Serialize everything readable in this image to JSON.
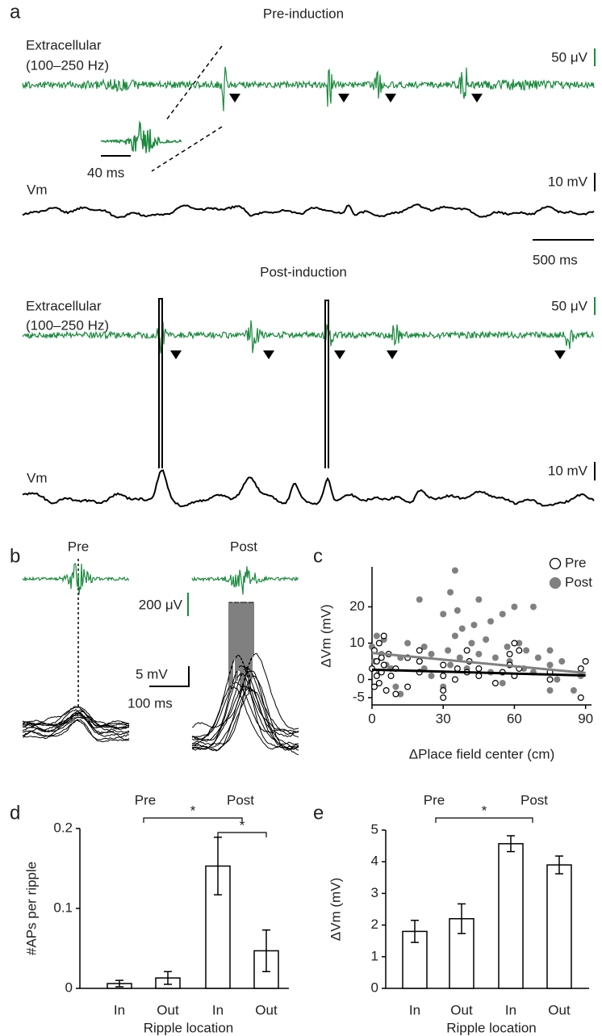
{
  "panel_a": {
    "label": "a",
    "pre_title": "Pre-induction",
    "post_title": "Post-induction",
    "extracellular_label": [
      "Extracellular",
      "(100–250 Hz)"
    ],
    "vm_label": "Vm",
    "scale_ec": "50 μV",
    "scale_vm": "10 mV",
    "scale_time": "500 ms",
    "inset_time": "40 ms"
  },
  "panel_b": {
    "label": "b",
    "pre": "Pre",
    "post": "Post",
    "scale_ec": "200 μV",
    "scale_vm": "5 mV",
    "scale_time": "100 ms"
  },
  "chart_data": [
    {
      "type": "scatter",
      "panel_label": "c",
      "xlabel": "ΔPlace field center (cm)",
      "ylabel": "ΔVm (mV)",
      "xlim": [
        0,
        92.5
      ],
      "xticks": [
        0,
        30,
        60,
        90
      ],
      "ylim": [
        -7,
        31
      ],
      "yticks": [
        -5,
        0,
        10,
        20
      ],
      "series": [
        {
          "name": "Pre",
          "color": "#000000",
          "marker": "open",
          "x": [
            0,
            1,
            1,
            2,
            2,
            3,
            3,
            4,
            4,
            5,
            5,
            6,
            7,
            8,
            10,
            10,
            15,
            15,
            20,
            20,
            20,
            30,
            30,
            30,
            30,
            35,
            36,
            40,
            40,
            41,
            45,
            45,
            52,
            55,
            58,
            58,
            60,
            60,
            62,
            62,
            75,
            75,
            88,
            88,
            90
          ],
          "y": [
            3,
            -2,
            8,
            5,
            1,
            10,
            -1,
            6,
            2,
            12,
            4,
            -3,
            7,
            1,
            -4,
            3,
            -2,
            6,
            2,
            8,
            5,
            -5,
            -3,
            1,
            4,
            0,
            3,
            2,
            8,
            5,
            1,
            3,
            -1,
            2,
            4,
            7,
            10,
            1,
            3,
            8,
            0,
            2,
            -5,
            3,
            5
          ]
        },
        {
          "name": "Post",
          "color": "#808080",
          "marker": "filled",
          "x": [
            0,
            1,
            2,
            3,
            4,
            5,
            6,
            8,
            10,
            12,
            12,
            15,
            20,
            20,
            22,
            22,
            25,
            25,
            30,
            30,
            32,
            33,
            33,
            35,
            35,
            36,
            37,
            38,
            40,
            42,
            43,
            45,
            45,
            48,
            50,
            50,
            52,
            55,
            55,
            57,
            58,
            60,
            60,
            62,
            64,
            65,
            68,
            68,
            70,
            75,
            75,
            75,
            78,
            80,
            85,
            88
          ],
          "y": [
            9,
            5,
            12,
            2,
            7,
            11,
            4,
            3,
            -2,
            -4,
            6,
            10,
            22,
            5,
            3,
            9,
            1,
            7,
            -2,
            18,
            8,
            24,
            4,
            30,
            12,
            19,
            6,
            14,
            3,
            10,
            15,
            22,
            7,
            11,
            16,
            2,
            6,
            -1,
            18,
            9,
            5,
            20,
            1,
            10,
            3,
            8,
            2,
            20,
            6,
            -3,
            4,
            8,
            0,
            5,
            -3,
            1
          ]
        }
      ],
      "fits": [
        {
          "color": "#000000",
          "x": [
            0,
            90
          ],
          "y": [
            2.7,
            1.1
          ]
        },
        {
          "color": "#808080",
          "x": [
            0,
            90
          ],
          "y": [
            7.3,
            1.8
          ]
        }
      ]
    },
    {
      "type": "bar",
      "panel_label": "d",
      "xlabel": "Ripple location",
      "ylabel": "#APs per ripple",
      "categories": [
        "In",
        "Out",
        "In",
        "Out"
      ],
      "values": [
        0.006,
        0.013,
        0.153,
        0.047
      ],
      "errors": [
        0.004,
        0.008,
        0.036,
        0.026
      ],
      "ylim": [
        0,
        0.2
      ],
      "yticks": [
        0,
        0.1,
        0.2
      ],
      "groups": [
        "Pre",
        "Post"
      ],
      "annotations": [
        "*",
        "*"
      ]
    },
    {
      "type": "bar",
      "panel_label": "e",
      "xlabel": "Ripple location",
      "ylabel": "ΔVm (mV)",
      "categories": [
        "In",
        "Out",
        "In",
        "Out"
      ],
      "values": [
        1.8,
        2.2,
        4.57,
        3.9
      ],
      "errors": [
        0.35,
        0.47,
        0.25,
        0.28
      ],
      "ylim": [
        0,
        5
      ],
      "yticks": [
        0,
        1,
        2,
        3,
        4,
        5
      ],
      "groups": [
        "Pre",
        "Post"
      ],
      "annotations": [
        "*"
      ]
    }
  ]
}
